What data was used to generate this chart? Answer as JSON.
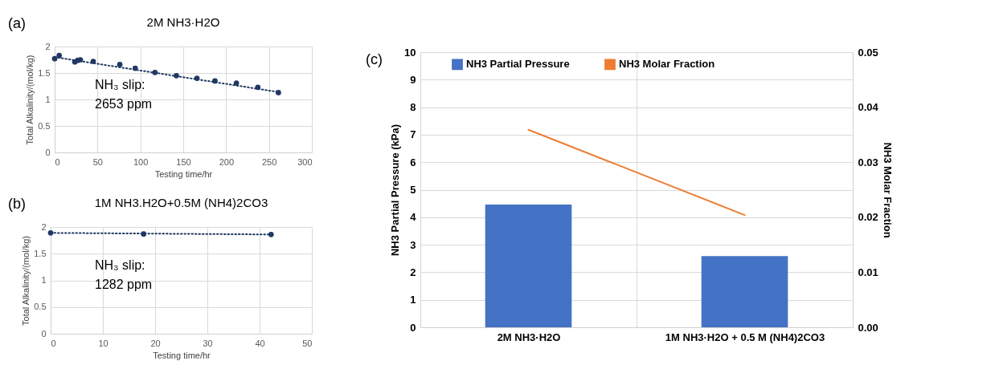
{
  "chart_data": [
    {
      "type": "scatter",
      "title": "2M NH3·H2O",
      "xlabel": "Testing time/hr",
      "ylabel": "Total Alkalinity/(mol/kg)",
      "annotations": [
        "(a)",
        "NH₃ slip:",
        "2653 ppm"
      ],
      "x": [
        0,
        5.3,
        23.6,
        27,
        30,
        45,
        76,
        94,
        117,
        142,
        166,
        187,
        212,
        237,
        261
      ],
      "series": [
        {
          "color": "#203864",
          "marker": "circle",
          "values": [
            1.77,
            1.83,
            1.71,
            1.74,
            1.75,
            1.72,
            1.66,
            1.59,
            1.51,
            1.45,
            1.4,
            1.35,
            1.31,
            1.23,
            1.13
          ]
        },
        {
          "type": "line",
          "x": [
            0,
            261
          ],
          "color": "#203864",
          "line_style": "dotted",
          "values": [
            1.8,
            1.14
          ]
        }
      ],
      "xlim": [
        0,
        300
      ],
      "xticks": [
        0,
        50,
        100,
        150,
        200,
        250,
        300
      ],
      "ylim": [
        0,
        2
      ],
      "yticks": [
        0,
        0.5,
        1,
        1.5,
        2
      ],
      "grid": true
    },
    {
      "type": "scatter",
      "title": "1M NH3.H2O+0.5M (NH4)2CO3",
      "xlabel": "Testing time/hr",
      "ylabel": "Total Alkalinity/(mol/kg)",
      "annotations": [
        "(b)",
        "NH₃ slip:",
        "1282 ppm"
      ],
      "x": [
        0,
        17.8,
        42.2
      ],
      "series": [
        {
          "color": "#203864",
          "marker": "circle",
          "values": [
            1.89,
            1.87,
            1.86
          ]
        },
        {
          "type": "line",
          "x": [
            0,
            42.2
          ],
          "color": "#203864",
          "line_style": "dotted",
          "values": [
            1.89,
            1.86
          ]
        }
      ],
      "xlim": [
        0,
        50
      ],
      "xticks": [
        0,
        10,
        20,
        30,
        40,
        50
      ],
      "ylim": [
        0,
        2
      ],
      "yticks": [
        0,
        0.5,
        1,
        1.5,
        2
      ],
      "grid": true
    },
    {
      "type": "bar",
      "ylabel": "NH3 Partial Pressure (kPa)",
      "y2label": "NH3 Molar Fraction",
      "annotations": [
        "(c)"
      ],
      "categories": [
        "2M NH3·H2O",
        "1M NH3·H2O + 0.5 M (NH4)2CO3"
      ],
      "series": [
        {
          "name": "NH3 Partial Pressure",
          "color": "#4472c4",
          "values": [
            4.46,
            2.59
          ]
        },
        {
          "name": "NH3 Molar Fraction",
          "type": "line",
          "axis": "y2",
          "color": "#ed7d31",
          "values": [
            0.0359,
            0.0204
          ]
        }
      ],
      "ylim": [
        0,
        10
      ],
      "yticks": [
        0,
        1,
        2,
        3,
        4,
        5,
        6,
        7,
        8,
        9,
        10
      ],
      "y2lim": [
        0,
        0.05
      ],
      "y2ticks": [
        {
          "value": 0,
          "label": "0.00"
        },
        {
          "value": 0.01,
          "label": "0.01"
        },
        {
          "value": 0.02,
          "label": "0.02"
        },
        {
          "value": 0.03,
          "label": "0.03"
        },
        {
          "value": 0.04,
          "label": "0.04"
        },
        {
          "value": 0.05,
          "label": "0.05"
        }
      ],
      "grid": true,
      "legend": "top"
    }
  ]
}
